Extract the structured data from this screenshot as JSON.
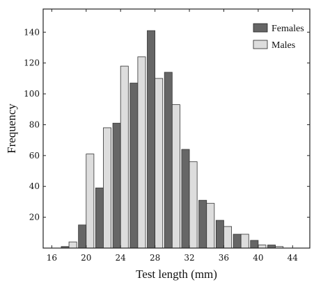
{
  "chart_data": {
    "type": "bar",
    "title": "",
    "xlabel": "Test length (mm)",
    "ylabel": "Frequency",
    "xlim": [
      15,
      46
    ],
    "ylim": [
      0,
      155
    ],
    "xticks": [
      16,
      20,
      24,
      28,
      32,
      36,
      40,
      44
    ],
    "yticks": [
      20,
      40,
      60,
      80,
      100,
      120,
      140
    ],
    "bin_width": 2,
    "bin_centers": [
      18,
      20,
      22,
      24,
      26,
      28,
      30,
      32,
      34,
      36,
      38,
      40,
      42,
      44
    ],
    "series": [
      {
        "name": "Females",
        "color": "#666666",
        "values": [
          1,
          15,
          39,
          81,
          107,
          141,
          114,
          64,
          31,
          18,
          9,
          5,
          2,
          0
        ]
      },
      {
        "name": "Males",
        "color": "#dddddd",
        "values": [
          4,
          61,
          78,
          118,
          124,
          110,
          93,
          56,
          29,
          14,
          9,
          2,
          1,
          0
        ]
      }
    ],
    "legend_position": "top-right",
    "grid": false
  }
}
